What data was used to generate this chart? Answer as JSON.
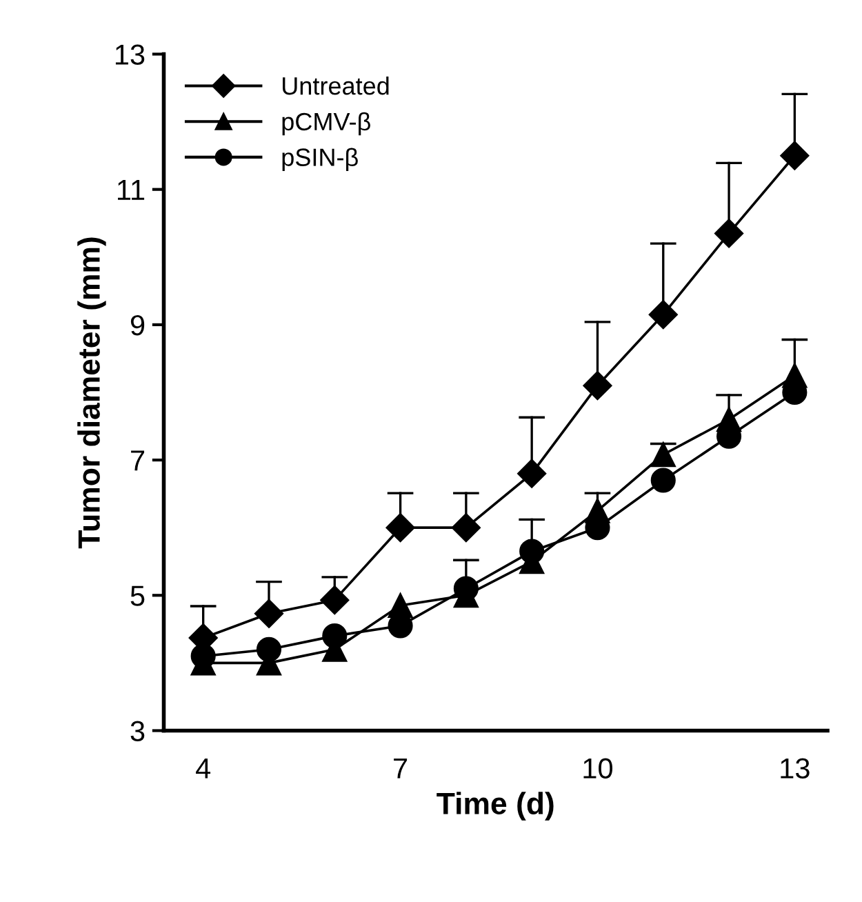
{
  "chart_data": {
    "type": "line",
    "xlabel": "Time (d)",
    "ylabel": "Tumor diameter (mm)",
    "x": [
      4,
      5,
      6,
      7,
      8,
      9,
      10,
      11,
      12,
      13
    ],
    "series": [
      {
        "name": "Untreated",
        "color": "#000000",
        "marker": "diamond",
        "values": [
          4.37,
          4.73,
          4.93,
          6.0,
          6.0,
          6.8,
          8.1,
          9.15,
          10.35,
          11.5
        ],
        "errors": [
          [
            4.37,
            4.84
          ],
          [
            4.73,
            5.2
          ],
          [
            4.93,
            5.27
          ],
          [
            6.0,
            6.51
          ],
          [
            6.0,
            6.51
          ],
          [
            6.8,
            7.63
          ],
          [
            8.1,
            9.04
          ],
          [
            9.15,
            10.2
          ],
          [
            10.35,
            11.39
          ],
          [
            11.5,
            12.41
          ]
        ]
      },
      {
        "name": "pCMV-β",
        "color": "#000000",
        "marker": "triangle",
        "values": [
          4.0,
          4.0,
          4.2,
          4.85,
          5.0,
          5.5,
          6.25,
          7.08,
          7.6,
          8.25
        ],
        "errors": [
          null,
          null,
          null,
          null,
          [
            5.0,
            5.52
          ],
          [
            5.5,
            6.12
          ],
          [
            6.25,
            6.51
          ],
          [
            7.08,
            7.24
          ],
          [
            7.6,
            7.96
          ],
          [
            8.25,
            8.78
          ]
        ]
      },
      {
        "name": "pSIN-β",
        "color": "#000000",
        "marker": "circle",
        "values": [
          4.1,
          4.2,
          4.4,
          4.55,
          5.1,
          5.65,
          6.0,
          6.7,
          7.35,
          8.0
        ]
      }
    ],
    "xlim": [
      3.4,
      13.5
    ],
    "xticks": [
      4,
      7,
      10,
      13
    ],
    "ylim": [
      3,
      13
    ],
    "yticks": [
      3,
      5,
      7,
      9,
      11,
      13
    ],
    "grid": false,
    "legend": "top left",
    "line_style": "solid"
  }
}
